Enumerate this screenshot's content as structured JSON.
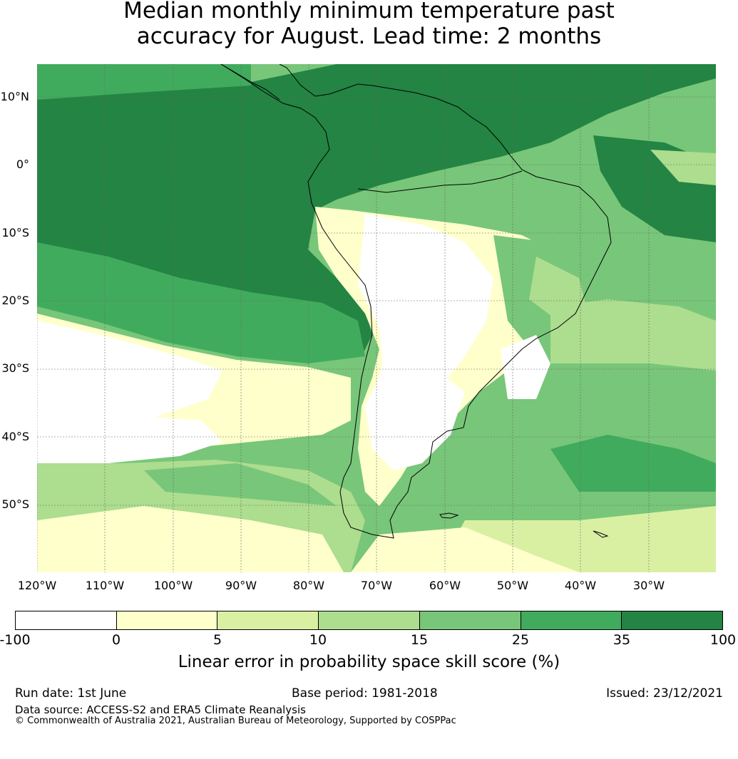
{
  "title_line1": "Median monthly minimum temperature past",
  "title_line2": "accuracy for August. Lead time: 2 months",
  "lat_labels": [
    "10°N",
    "0°",
    "10°S",
    "20°S",
    "30°S",
    "40°S",
    "50°S"
  ],
  "lon_labels": [
    "120°W",
    "110°W",
    "100°W",
    "90°W",
    "80°W",
    "70°W",
    "60°W",
    "50°W",
    "40°W",
    "30°W"
  ],
  "colorbar": {
    "ticks": [
      "-100",
      "0",
      "5",
      "10",
      "15",
      "25",
      "35",
      "100"
    ],
    "colors": [
      "#ffffff",
      "#ffffcc",
      "#d9f0a3",
      "#addd8e",
      "#78c679",
      "#41ab5d",
      "#238443"
    ],
    "label": "Linear error in probability space skill score (%)"
  },
  "footer": {
    "run_date": "Run date: 1st June",
    "base_period": "Base period: 1981-2018",
    "issued": "Issued: 23/12/2021",
    "data_source": "Data source: ACCESS-S2 and ERA5 Climate Reanalysis",
    "copyright": "© Commonwealth of Australia 2021, Australian Bureau of Meteorology, Supported by COSPPac"
  },
  "map": {
    "region": "South America",
    "lat_range": [
      "15°N",
      "60°S"
    ],
    "lon_range": [
      "120°W",
      "20°W"
    ]
  }
}
